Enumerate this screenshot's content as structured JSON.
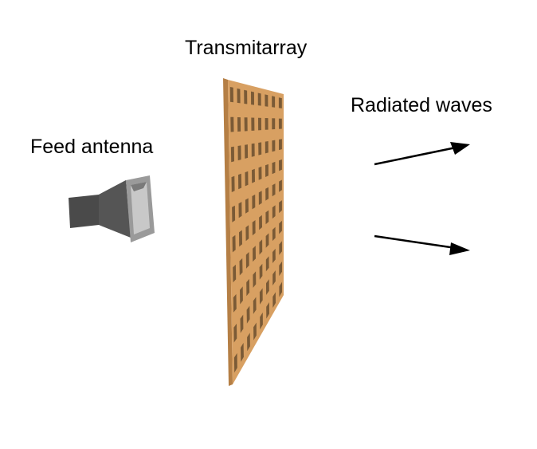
{
  "labels": {
    "transmitarray": "Transmitarray",
    "radiated_waves": "Radiated waves",
    "feed_antenna": "Feed antenna"
  },
  "colors": {
    "panel_face": "#d8a062",
    "panel_edge": "#b57f45",
    "slot_fill": "#7a5a36",
    "horn_dark": "#4a4a4a",
    "horn_mid": "#6a6a6a",
    "horn_light": "#b8b8b8",
    "arrow": "#000000"
  },
  "array": {
    "rows": 10,
    "cols": 8
  },
  "icons": [
    "horn-antenna-icon",
    "transmitarray-panel-icon",
    "arrow-icon"
  ]
}
